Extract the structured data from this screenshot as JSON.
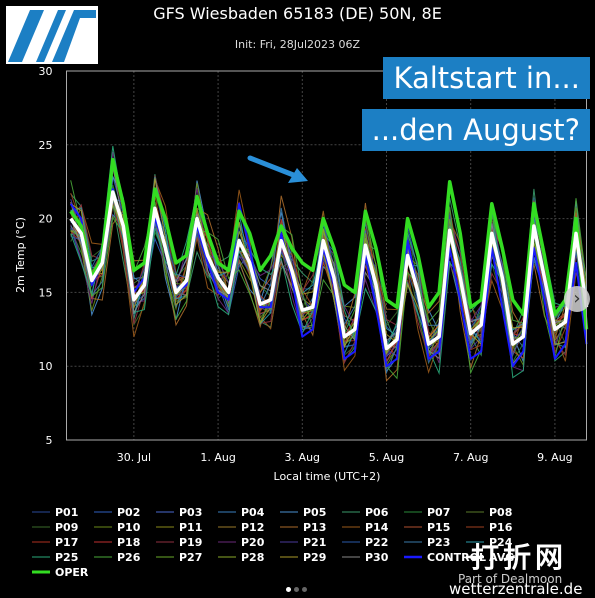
{
  "header": {
    "title": "GFS Wiesbaden 65183 (DE) 50N, 8E",
    "init": "Init: Fri, 28Jul2023 06Z"
  },
  "banner": {
    "line1": "Kaltstart in...",
    "line2": "...den August?"
  },
  "watermark": {
    "chinese": "打折网",
    "part_of": "Part of Dealmoon",
    "site": "wetterzentrale.de"
  },
  "colors": {
    "background": "#000000",
    "oper": "#33dd22",
    "control": "#1a1aff",
    "average": "#ffffff",
    "banner": "#1c7fc4",
    "annotation_arrow": "#2a8fd8"
  },
  "chart_data": {
    "type": "line",
    "ylabel": "2m Temp (°C)",
    "xlabel": "Local time (UTC+2)",
    "ylim": [
      5,
      30
    ],
    "yticks": [
      5,
      10,
      15,
      20,
      25,
      30
    ],
    "x_range_days_from_29jul": [
      -0.6,
      11.75
    ],
    "xticks": [
      {
        "label": "30. Jul",
        "day": 1
      },
      {
        "label": "1. Aug",
        "day": 3
      },
      {
        "label": "3. Aug",
        "day": 5
      },
      {
        "label": "5. Aug",
        "day": 7
      },
      {
        "label": "7. Aug",
        "day": 9
      },
      {
        "label": "9. Aug",
        "day": 11
      }
    ],
    "grid": true,
    "legend_position": "bottom",
    "ensemble_members": [
      "P01",
      "P02",
      "P03",
      "P04",
      "P05",
      "P06",
      "P07",
      "P08",
      "P09",
      "P10",
      "P11",
      "P12",
      "P13",
      "P14",
      "P15",
      "P16",
      "P17",
      "P18",
      "P19",
      "P20",
      "P21",
      "P22",
      "P23",
      "P24",
      "P25",
      "P26",
      "P27",
      "P28",
      "P29",
      "P30"
    ],
    "member_colors": [
      "#2a4a9a",
      "#3060c0",
      "#4a6ad0",
      "#3a80c0",
      "#4a90d0",
      "#3a9a6a",
      "#2a8a3a",
      "#5a7a2a",
      "#3a6a2a",
      "#6a8a1a",
      "#8a8a1a",
      "#9a7a2a",
      "#aa6a2a",
      "#9a5a1a",
      "#b05030",
      "#a04020",
      "#b03020",
      "#c03030",
      "#903040",
      "#6a2a7a",
      "#4a3a9a",
      "#2a5aaa",
      "#3a7aaa",
      "#2a9aaa",
      "#2aaa7a",
      "#4aaa3a",
      "#6aaa2a",
      "#8aaa2a",
      "#aa9a2a",
      "#888888"
    ],
    "oper": {
      "name": "OPER",
      "x": [
        -0.5,
        -0.25,
        0,
        0.25,
        0.5,
        0.75,
        1,
        1.25,
        1.5,
        1.75,
        2,
        2.25,
        2.5,
        2.75,
        3,
        3.25,
        3.5,
        3.75,
        4,
        4.25,
        4.5,
        4.75,
        5,
        5.25,
        5.5,
        5.75,
        6,
        6.25,
        6.5,
        6.75,
        7,
        7.25,
        7.5,
        7.75,
        8,
        8.25,
        8.5,
        8.75,
        9,
        9.25,
        9.5,
        9.75,
        10,
        10.25,
        10.5,
        10.75,
        11,
        11.25,
        11.5,
        11.75
      ],
      "values": [
        20.5,
        19.5,
        16.0,
        17.5,
        24.0,
        21.0,
        16.5,
        17.0,
        22.0,
        20.0,
        17.0,
        17.5,
        21.5,
        19.0,
        17.0,
        16.5,
        20.5,
        19.0,
        16.5,
        17.5,
        19.5,
        18.0,
        17.0,
        16.5,
        20.0,
        18.0,
        15.5,
        15.0,
        20.5,
        18.0,
        14.5,
        14.0,
        20.0,
        17.5,
        14.0,
        15.0,
        22.5,
        19.0,
        14.0,
        14.5,
        21.0,
        18.0,
        14.5,
        13.5,
        21.0,
        17.5,
        13.5,
        14.5,
        20.0,
        12.5
      ]
    },
    "control": {
      "name": "CONTROL",
      "x": [
        -0.5,
        -0.25,
        0,
        0.25,
        0.5,
        0.75,
        1,
        1.25,
        1.5,
        1.75,
        2,
        2.25,
        2.5,
        2.75,
        3,
        3.25,
        3.5,
        3.75,
        4,
        4.25,
        4.5,
        4.75,
        5,
        5.25,
        5.5,
        5.75,
        6,
        6.25,
        6.5,
        6.75,
        7,
        7.25,
        7.5,
        7.75,
        8,
        8.25,
        8.5,
        8.75,
        9,
        9.25,
        9.5,
        9.75,
        10,
        10.25,
        10.5,
        10.75,
        11,
        11.25,
        11.5,
        11.75
      ],
      "values": [
        21.0,
        20.0,
        15.5,
        17.0,
        22.0,
        19.5,
        15.0,
        16.0,
        20.0,
        18.0,
        15.0,
        15.5,
        19.5,
        17.0,
        15.0,
        14.5,
        21.0,
        18.0,
        14.0,
        14.0,
        19.0,
        16.0,
        12.0,
        12.5,
        18.0,
        15.5,
        10.5,
        11.0,
        17.5,
        14.0,
        10.0,
        10.5,
        18.5,
        15.0,
        10.5,
        11.0,
        18.0,
        14.5,
        10.5,
        11.0,
        18.0,
        14.0,
        10.0,
        11.0,
        18.0,
        14.5,
        10.5,
        11.5,
        17.0,
        11.5
      ]
    },
    "average": {
      "name": "AVG",
      "x": [
        -0.5,
        -0.25,
        0,
        0.25,
        0.5,
        0.75,
        1,
        1.25,
        1.5,
        1.75,
        2,
        2.25,
        2.5,
        2.75,
        3,
        3.25,
        3.5,
        3.75,
        4,
        4.25,
        4.5,
        4.75,
        5,
        5.25,
        5.5,
        5.75,
        6,
        6.25,
        6.5,
        6.75,
        7,
        7.25,
        7.5,
        7.75,
        8,
        8.25,
        8.5,
        8.75,
        9,
        9.25,
        9.5,
        9.75,
        10,
        10.25,
        10.5,
        10.75,
        11,
        11.25,
        11.5,
        11.75
      ],
      "values": [
        20.0,
        19.0,
        15.8,
        17.0,
        21.8,
        19.5,
        14.5,
        15.5,
        20.7,
        18.0,
        15.0,
        15.8,
        20.0,
        17.5,
        16.0,
        15.0,
        18.5,
        17.0,
        14.2,
        14.5,
        18.5,
        16.5,
        13.8,
        14.0,
        18.5,
        16.0,
        12.0,
        12.5,
        18.2,
        15.5,
        11.2,
        11.8,
        17.5,
        15.0,
        11.5,
        12.0,
        19.2,
        16.0,
        12.2,
        12.8,
        19.0,
        16.0,
        11.5,
        12.0,
        19.5,
        16.0,
        12.5,
        13.0,
        19.0,
        14.0
      ]
    }
  }
}
